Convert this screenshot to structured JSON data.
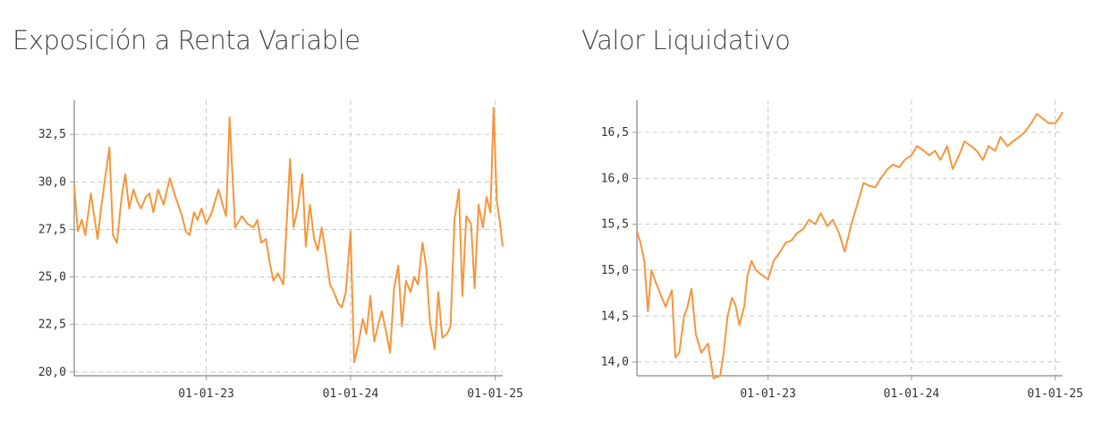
{
  "colors": {
    "series": "#f5963c"
  },
  "chart_data": [
    {
      "type": "line",
      "title": "Exposición a Renta Variable",
      "xlabel": "",
      "ylabel": "",
      "xlim": [
        "2022-02-01",
        "2025-01-20"
      ],
      "ylim": [
        19.8,
        34.3
      ],
      "y_ticks": [
        20.0,
        22.5,
        25.0,
        27.5,
        30.0,
        32.5
      ],
      "y_tick_labels": [
        "20,0",
        "22,5",
        "25,0",
        "27,5",
        "30,0",
        "32,5"
      ],
      "x_ticks": [
        "2023-01-01",
        "2024-01-01",
        "2025-01-01"
      ],
      "x_tick_labels": [
        "01-01-23",
        "01-01-24",
        "01-01-25"
      ],
      "grid": true,
      "series": [
        {
          "x": [
            "2022-02-01",
            "2022-02-10",
            "2022-02-20",
            "2022-03-01",
            "2022-03-15",
            "2022-04-01",
            "2022-04-10",
            "2022-04-20",
            "2022-05-01",
            "2022-05-10",
            "2022-05-20",
            "2022-06-01",
            "2022-06-10",
            "2022-06-20",
            "2022-07-01",
            "2022-07-10",
            "2022-07-20",
            "2022-08-01",
            "2022-08-10",
            "2022-08-20",
            "2022-09-01",
            "2022-09-15",
            "2022-10-01",
            "2022-10-15",
            "2022-11-01",
            "2022-11-10",
            "2022-11-20",
            "2022-12-01",
            "2022-12-10",
            "2022-12-20",
            "2023-01-01",
            "2023-01-15",
            "2023-02-01",
            "2023-02-10",
            "2023-02-20",
            "2023-03-01",
            "2023-03-15",
            "2023-04-01",
            "2023-04-15",
            "2023-05-01",
            "2023-05-10",
            "2023-05-20",
            "2023-06-01",
            "2023-06-10",
            "2023-06-20",
            "2023-07-01",
            "2023-07-15",
            "2023-08-01",
            "2023-08-10",
            "2023-08-20",
            "2023-09-01",
            "2023-09-10",
            "2023-09-20",
            "2023-10-01",
            "2023-10-10",
            "2023-10-20",
            "2023-11-01",
            "2023-11-10",
            "2023-11-20",
            "2023-12-01",
            "2023-12-10",
            "2023-12-20",
            "2024-01-01",
            "2024-01-10",
            "2024-01-20",
            "2024-02-01",
            "2024-02-10",
            "2024-02-20",
            "2024-03-01",
            "2024-03-10",
            "2024-03-20",
            "2024-04-01",
            "2024-04-10",
            "2024-04-20",
            "2024-05-01",
            "2024-05-10",
            "2024-05-20",
            "2024-06-01",
            "2024-06-10",
            "2024-06-20",
            "2024-07-01",
            "2024-07-10",
            "2024-07-20",
            "2024-08-01",
            "2024-08-10",
            "2024-08-20",
            "2024-09-01",
            "2024-09-10",
            "2024-09-20",
            "2024-10-01",
            "2024-10-10",
            "2024-10-20",
            "2024-11-01",
            "2024-11-10",
            "2024-11-20",
            "2024-12-01",
            "2024-12-10",
            "2024-12-20",
            "2024-12-28",
            "2025-01-05",
            "2025-01-12",
            "2025-01-20"
          ],
          "values": [
            29.8,
            27.4,
            28.0,
            27.2,
            29.4,
            27.0,
            28.6,
            30.2,
            31.8,
            27.2,
            26.8,
            29.2,
            30.4,
            28.6,
            29.6,
            29.0,
            28.6,
            29.2,
            29.4,
            28.4,
            29.6,
            28.8,
            30.2,
            29.2,
            28.2,
            27.4,
            27.2,
            28.4,
            28.0,
            28.6,
            27.8,
            28.4,
            29.6,
            28.9,
            28.2,
            33.4,
            27.6,
            28.2,
            27.8,
            27.6,
            28.0,
            26.8,
            27.0,
            25.8,
            24.8,
            25.2,
            24.6,
            31.2,
            27.6,
            28.6,
            30.4,
            26.6,
            28.8,
            27.0,
            26.4,
            27.6,
            26.0,
            24.6,
            24.2,
            23.6,
            23.4,
            24.2,
            27.4,
            20.5,
            21.4,
            22.8,
            22.0,
            24.0,
            21.6,
            22.4,
            23.2,
            22.0,
            21.0,
            24.4,
            25.6,
            22.4,
            24.8,
            24.2,
            25.0,
            24.6,
            26.8,
            25.6,
            22.6,
            21.2,
            24.2,
            21.8,
            22.0,
            22.4,
            28.0,
            29.6,
            24.0,
            28.2,
            27.8,
            24.4,
            28.8,
            27.6,
            29.2,
            28.4,
            33.9,
            29.0,
            28.0,
            26.6
          ]
        }
      ]
    },
    {
      "type": "line",
      "title": "Valor Liquidativo",
      "xlabel": "",
      "ylabel": "",
      "xlim": [
        "2022-02-01",
        "2025-01-20"
      ],
      "ylim": [
        13.85,
        16.85
      ],
      "y_ticks": [
        14.0,
        14.5,
        15.0,
        15.5,
        16.0,
        16.5
      ],
      "y_tick_labels": [
        "14,0",
        "14,5",
        "15,0",
        "15,5",
        "16,0",
        "16,5"
      ],
      "x_ticks": [
        "2023-01-01",
        "2024-01-01",
        "2025-01-01"
      ],
      "x_tick_labels": [
        "01-01-23",
        "01-01-24",
        "01-01-25"
      ],
      "grid": true,
      "series": [
        {
          "x": [
            "2022-02-01",
            "2022-02-10",
            "2022-02-20",
            "2022-03-01",
            "2022-03-10",
            "2022-03-20",
            "2022-04-01",
            "2022-04-15",
            "2022-05-01",
            "2022-05-10",
            "2022-05-20",
            "2022-06-01",
            "2022-06-10",
            "2022-06-20",
            "2022-07-01",
            "2022-07-15",
            "2022-08-01",
            "2022-08-15",
            "2022-09-01",
            "2022-09-10",
            "2022-09-20",
            "2022-10-01",
            "2022-10-10",
            "2022-10-20",
            "2022-11-01",
            "2022-11-10",
            "2022-11-20",
            "2022-12-01",
            "2022-12-15",
            "2023-01-01",
            "2023-01-15",
            "2023-02-01",
            "2023-02-15",
            "2023-03-01",
            "2023-03-15",
            "2023-04-01",
            "2023-04-15",
            "2023-05-01",
            "2023-05-15",
            "2023-06-01",
            "2023-06-15",
            "2023-07-01",
            "2023-07-15",
            "2023-08-01",
            "2023-08-15",
            "2023-09-01",
            "2023-09-15",
            "2023-10-01",
            "2023-10-15",
            "2023-11-01",
            "2023-11-15",
            "2023-12-01",
            "2023-12-15",
            "2024-01-01",
            "2024-01-15",
            "2024-02-01",
            "2024-02-15",
            "2024-03-01",
            "2024-03-15",
            "2024-04-01",
            "2024-04-15",
            "2024-05-01",
            "2024-05-15",
            "2024-06-01",
            "2024-06-15",
            "2024-07-01",
            "2024-07-15",
            "2024-08-01",
            "2024-08-15",
            "2024-09-01",
            "2024-09-15",
            "2024-10-01",
            "2024-10-15",
            "2024-11-01",
            "2024-11-15",
            "2024-12-01",
            "2024-12-15",
            "2025-01-01",
            "2025-01-10",
            "2025-01-20"
          ],
          "values": [
            15.42,
            15.3,
            15.1,
            14.55,
            15.0,
            14.88,
            14.75,
            14.6,
            14.78,
            14.05,
            14.1,
            14.5,
            14.6,
            14.8,
            14.3,
            14.1,
            14.2,
            13.82,
            13.85,
            14.1,
            14.5,
            14.7,
            14.62,
            14.4,
            14.6,
            14.95,
            15.1,
            15.0,
            14.95,
            14.9,
            15.1,
            15.2,
            15.3,
            15.32,
            15.4,
            15.45,
            15.55,
            15.5,
            15.62,
            15.48,
            15.55,
            15.4,
            15.2,
            15.5,
            15.7,
            15.95,
            15.92,
            15.9,
            16.0,
            16.1,
            16.15,
            16.12,
            16.2,
            16.25,
            16.35,
            16.3,
            16.25,
            16.3,
            16.2,
            16.35,
            16.1,
            16.25,
            16.4,
            16.35,
            16.3,
            16.2,
            16.35,
            16.3,
            16.45,
            16.35,
            16.4,
            16.45,
            16.5,
            16.6,
            16.7,
            16.65,
            16.6,
            16.6,
            16.65,
            16.72
          ]
        }
      ]
    }
  ]
}
